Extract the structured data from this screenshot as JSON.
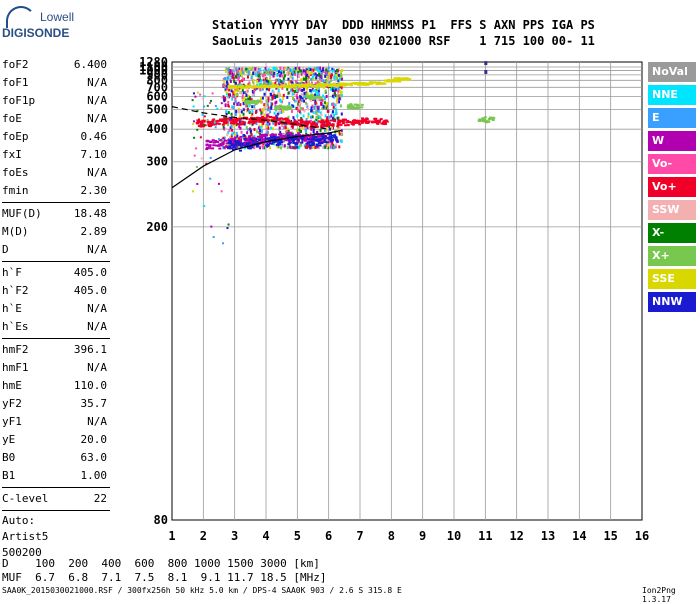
{
  "logo": {
    "line1": "Lowell",
    "line2": "DIGISONDE"
  },
  "header": {
    "line1": "Station YYYY DAY  DDD HHMMSS P1  FFS S AXN PPS IGA PS",
    "line2": "SaoLuis 2015 Jan30 030 021000 RSF    1 715 100 00- 11"
  },
  "params": {
    "group1": [
      {
        "k": "foF2",
        "v": "6.400"
      },
      {
        "k": "foF1",
        "v": "N/A"
      },
      {
        "k": "foF1p",
        "v": "N/A"
      },
      {
        "k": "foE",
        "v": "N/A"
      },
      {
        "k": "foEp",
        "v": "0.46"
      },
      {
        "k": "fxI",
        "v": "7.10"
      },
      {
        "k": "foEs",
        "v": "N/A"
      },
      {
        "k": "fmin",
        "v": "2.30"
      }
    ],
    "group2": [
      {
        "k": "MUF(D)",
        "v": "18.48"
      },
      {
        "k": "M(D)",
        "v": "2.89"
      },
      {
        "k": "D",
        "v": "N/A"
      }
    ],
    "group3": [
      {
        "k": "h`F",
        "v": "405.0"
      },
      {
        "k": "h`F2",
        "v": "405.0"
      },
      {
        "k": "h`E",
        "v": "N/A"
      },
      {
        "k": "h`Es",
        "v": "N/A"
      }
    ],
    "group4": [
      {
        "k": "hmF2",
        "v": "396.1"
      },
      {
        "k": "hmF1",
        "v": "N/A"
      },
      {
        "k": "hmE",
        "v": "110.0"
      },
      {
        "k": "yF2",
        "v": "35.7"
      },
      {
        "k": "yF1",
        "v": "N/A"
      },
      {
        "k": "yE",
        "v": "20.0"
      },
      {
        "k": "B0",
        "v": "63.0"
      },
      {
        "k": "B1",
        "v": "1.00"
      }
    ],
    "group5": [
      {
        "k": "C-level",
        "v": "22"
      }
    ],
    "auto": {
      "l1": "Auto:",
      "l2": "Artist5",
      "l3": "500200"
    }
  },
  "legend": [
    {
      "label": "NoVal",
      "color": "#9a9a9a"
    },
    {
      "label": "NNE",
      "color": "#00e5ff"
    },
    {
      "label": "E",
      "color": "#3aa0ff"
    },
    {
      "label": "W",
      "color": "#b000b0"
    },
    {
      "label": "Vo-",
      "color": "#ff4aa8"
    },
    {
      "label": "Vo+",
      "color": "#f00028"
    },
    {
      "label": "SSW",
      "color": "#f4b0b0"
    },
    {
      "label": "X-",
      "color": "#008000"
    },
    {
      "label": "X+",
      "color": "#78c850"
    },
    {
      "label": "SSE",
      "color": "#d8d800"
    },
    {
      "label": "NNW",
      "color": "#1a1ad0"
    }
  ],
  "dmuf": {
    "dline": "D    100  200  400  600  800 1000 1500 3000 [km]",
    "mline": "MUF  6.7  6.8  7.1  7.5  8.1  9.1 11.7 18.5 [MHz]"
  },
  "footer": {
    "left": "SAA0K_2015030021000.RSF / 300fx256h 50 kHz 5.0 km / DPS-4 SAA0K 903 / 2.6 S 315.8 E",
    "right": "Ion2Png 1.3.17"
  },
  "chart_data": {
    "type": "scatter",
    "x_ticks": [
      1,
      2,
      3,
      4,
      5,
      6,
      7,
      8,
      9,
      10,
      11,
      12,
      13,
      14,
      15,
      16
    ],
    "y_ticks": [
      80,
      200,
      300,
      400,
      500,
      600,
      700,
      800,
      900,
      1000,
      1100,
      1280
    ],
    "xlim": [
      1,
      16
    ],
    "ylim": [
      80,
      1280
    ],
    "y_scale": "reciprocal",
    "grid": true,
    "legend_position": "right",
    "clusters": [
      {
        "name": "W",
        "color": "#b000b0",
        "points": [
          [
            3.2,
            360
          ],
          [
            3.6,
            365
          ],
          [
            4,
            370
          ],
          [
            4.4,
            372
          ],
          [
            4.8,
            375
          ],
          [
            5.2,
            368
          ],
          [
            5.6,
            372
          ],
          [
            2.8,
            355
          ],
          [
            2.3,
            350
          ]
        ]
      },
      {
        "name": "NNW",
        "color": "#1a1ad0",
        "points": [
          [
            3,
            345
          ],
          [
            3.5,
            352
          ],
          [
            4.2,
            360
          ],
          [
            4.9,
            364
          ],
          [
            5.5,
            360
          ],
          [
            6,
            370
          ]
        ]
      },
      {
        "name": "Vo+",
        "color": "#f00028",
        "points": [
          [
            2,
            430
          ],
          [
            2.5,
            435
          ],
          [
            3,
            440
          ],
          [
            3.5,
            445
          ],
          [
            4,
            450
          ],
          [
            4.5,
            440
          ],
          [
            5,
            430
          ],
          [
            5.5,
            425
          ],
          [
            6,
            430
          ],
          [
            6.5,
            435
          ],
          [
            7,
            440
          ],
          [
            7.6,
            440
          ]
        ]
      },
      {
        "name": "SSE",
        "color": "#d8d800",
        "points": [
          [
            3,
            715
          ],
          [
            3.5,
            720
          ],
          [
            4,
            725
          ],
          [
            4.5,
            725
          ],
          [
            5,
            735
          ],
          [
            5.5,
            740
          ],
          [
            6,
            745
          ],
          [
            6.5,
            750
          ],
          [
            7,
            760
          ],
          [
            7.5,
            770
          ],
          [
            8,
            810
          ],
          [
            8.3,
            840
          ]
        ]
      },
      {
        "name": "X+",
        "color": "#78c850",
        "points": [
          [
            3.5,
            560
          ],
          [
            4.5,
            520
          ],
          [
            5.5,
            600
          ],
          [
            6.8,
            530
          ],
          [
            11,
            450
          ]
        ]
      }
    ],
    "profile_curve": [
      [
        1,
        250
      ],
      [
        2,
        290
      ],
      [
        3,
        330
      ],
      [
        4,
        355
      ],
      [
        5,
        372
      ],
      [
        6,
        385
      ],
      [
        6.4,
        395
      ]
    ],
    "dashed_curve": [
      [
        1,
        520
      ],
      [
        2,
        480
      ],
      [
        3,
        455
      ],
      [
        4,
        440
      ],
      [
        4.5,
        430
      ],
      [
        5,
        420
      ],
      [
        5.5,
        410
      ],
      [
        6,
        400
      ]
    ],
    "mark_points": [
      [
        11,
        1235
      ],
      [
        11,
        965
      ]
    ]
  }
}
